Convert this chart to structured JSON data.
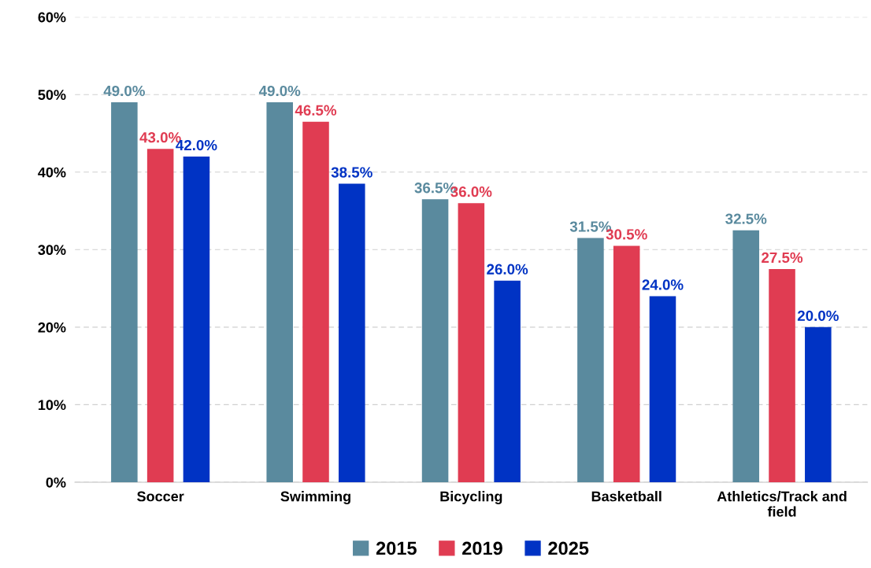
{
  "chart_data": {
    "type": "bar",
    "categories": [
      "Soccer",
      "Swimming",
      "Bicycling",
      "Basketball",
      "Athletics/Track and field"
    ],
    "series": [
      {
        "name": "2015",
        "color": "#5a8a9e",
        "values": [
          49.0,
          49.0,
          36.5,
          31.5,
          32.5
        ],
        "value_labels": [
          "49.0%",
          "49.0%",
          "36.5%",
          "31.5%",
          "32.5%"
        ]
      },
      {
        "name": "2019",
        "color": "#e03c52",
        "values": [
          43.0,
          46.5,
          36.0,
          30.5,
          27.5
        ],
        "value_labels": [
          "43.0%",
          "46.5%",
          "36.0%",
          "30.5%",
          "27.5%"
        ]
      },
      {
        "name": "2025",
        "color": "#0033c4",
        "values": [
          42.0,
          38.5,
          26.0,
          24.0,
          20.0
        ],
        "value_labels": [
          "42.0%",
          "38.5%",
          "26.0%",
          "24.0%",
          "20.0%"
        ]
      }
    ],
    "ylim": [
      0,
      60
    ],
    "yticks": [
      {
        "value": 0,
        "label": "0%"
      },
      {
        "value": 10,
        "label": "10%"
      },
      {
        "value": 20,
        "label": "20%"
      },
      {
        "value": 30,
        "label": "30%"
      },
      {
        "value": 40,
        "label": "40%"
      },
      {
        "value": 50,
        "label": "50%"
      },
      {
        "value": 60,
        "label": "60%"
      }
    ],
    "grid": "y",
    "legend": "bottom"
  }
}
